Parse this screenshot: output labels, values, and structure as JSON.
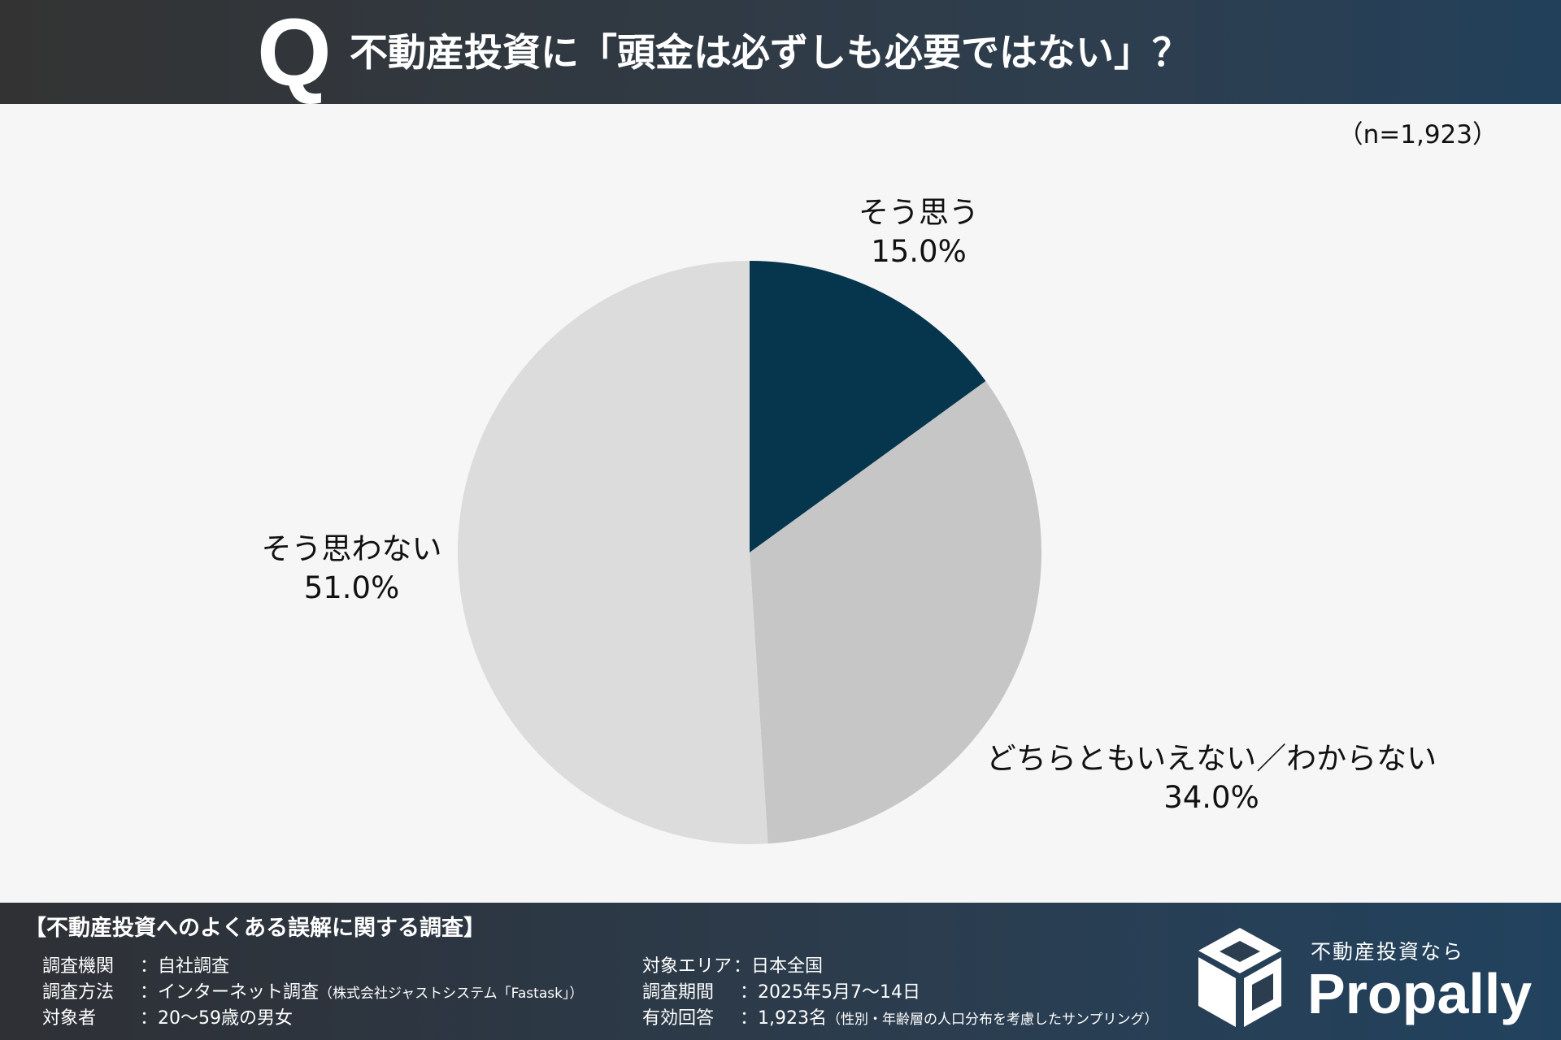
{
  "header": {
    "q_mark": "Q",
    "question": "不動産投資に「頭金は必ずしも必要ではない」？"
  },
  "sample_size": "（n=1,923）",
  "chart_data": {
    "type": "pie",
    "categories": [
      "そう思う",
      "どちらともいえない／わからない",
      "そう思わない"
    ],
    "values": [
      15.0,
      34.0,
      51.0
    ],
    "value_labels": [
      "15.0%",
      "34.0%",
      "51.0%"
    ],
    "colors": [
      "#06364d",
      "#c6c6c6",
      "#dcdcdc"
    ],
    "start": "12 o'clock, clockwise",
    "title": ""
  },
  "footer": {
    "survey_title": "【不動産投資へのよくある誤解に関する調査】",
    "left": [
      {
        "key": "調査機関",
        "value": "：自社調査",
        "note": ""
      },
      {
        "key": "調査方法",
        "value": "：インターネット調査",
        "note": "（株式会社ジャストシステム「Fastask」）"
      },
      {
        "key": "対象者",
        "value": "：20〜59歳の男女",
        "note": ""
      }
    ],
    "right": [
      {
        "key": "対象エリア",
        "value": "：日本全国",
        "note": ""
      },
      {
        "key": "調査期間",
        "value": "：2025年5月7〜14日",
        "note": ""
      },
      {
        "key": "有効回答",
        "value": "：1,923名",
        "note": "（性別・年齢層の人口分布を考慮したサンプリング）"
      }
    ]
  },
  "logo": {
    "tagline": "不動産投資なら",
    "name": "Propally"
  }
}
